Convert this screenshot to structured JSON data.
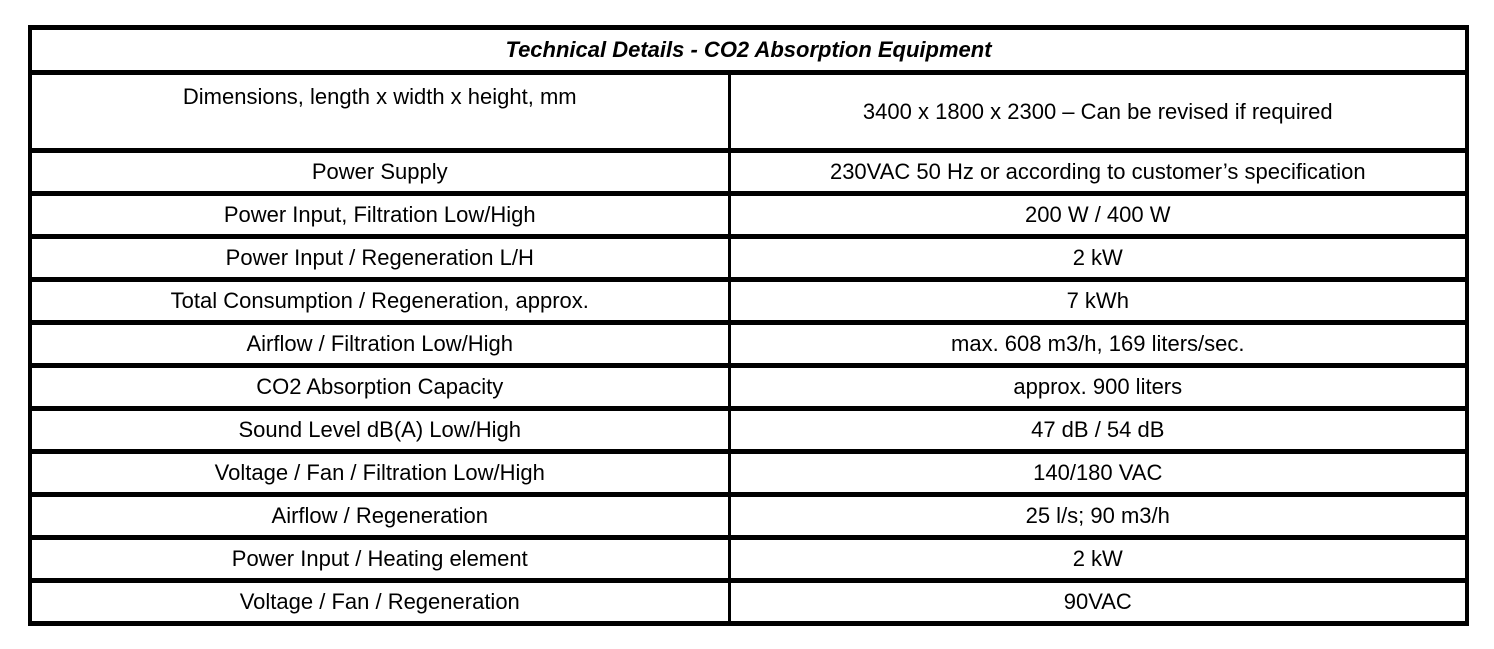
{
  "table": {
    "title": "Technical Details - CO2 Absorption Equipment",
    "border_color": "#000000",
    "text_color": "#000000",
    "background_color": "#ffffff",
    "columns": [
      "parameter",
      "value"
    ],
    "rows": [
      {
        "label": "Dimensions, length x width x height, mm",
        "value": "3400 x 1800 x 2300 – Can be revised if required"
      },
      {
        "label": "Power Supply",
        "value": "230VAC 50 Hz or according to customer’s specification"
      },
      {
        "label": "Power Input, Filtration Low/High",
        "value": "200 W / 400 W"
      },
      {
        "label": "Power Input / Regeneration L/H",
        "value": "2 kW"
      },
      {
        "label": "Total Consumption / Regeneration, approx.",
        "value": "7 kWh"
      },
      {
        "label": "Airflow / Filtration Low/High",
        "value": "max. 608 m3/h, 169 liters/sec."
      },
      {
        "label": "CO2 Absorption Capacity",
        "value": "approx. 900 liters"
      },
      {
        "label": "Sound Level dB(A) Low/High",
        "value": "47 dB / 54 dB"
      },
      {
        "label": "Voltage / Fan / Filtration Low/High",
        "value": "140/180 VAC"
      },
      {
        "label": "Airflow / Regeneration",
        "value": "25 l/s; 90 m3/h"
      },
      {
        "label": "Power Input / Heating element",
        "value": "2 kW"
      },
      {
        "label": "Voltage / Fan / Regeneration",
        "value": "90VAC"
      }
    ]
  }
}
